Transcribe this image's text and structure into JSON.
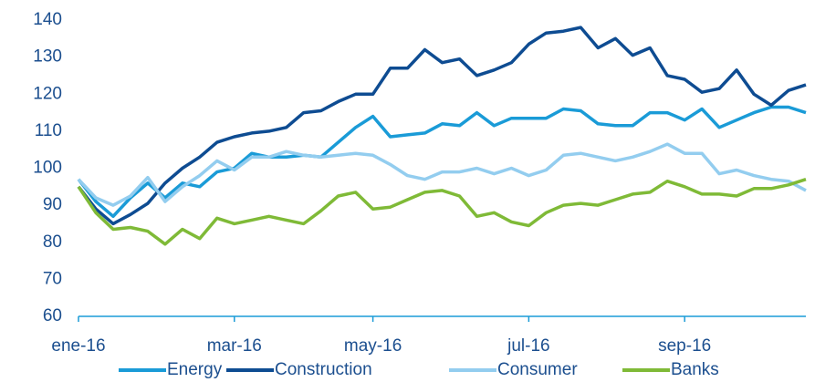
{
  "chart_data": {
    "type": "line",
    "categories": [
      "ene-16",
      null,
      null,
      null,
      null,
      null,
      null,
      null,
      null,
      "mar-16",
      null,
      null,
      null,
      null,
      null,
      null,
      null,
      "may-16",
      null,
      null,
      null,
      null,
      null,
      null,
      null,
      null,
      "jul-16",
      null,
      null,
      null,
      null,
      null,
      null,
      null,
      null,
      "sep-16",
      null,
      null,
      null,
      null,
      null,
      null,
      null
    ],
    "series": [
      {
        "name": "Energy",
        "color": "#1a9bd7",
        "values": [
          97,
          91,
          87,
          92,
          96,
          92,
          96,
          95,
          99,
          100,
          104,
          103,
          103,
          103.5,
          103,
          107,
          111,
          114,
          108.5,
          109,
          109.5,
          112,
          111.5,
          115,
          111.5,
          113.5,
          113.5,
          113.5,
          116,
          115.5,
          112,
          111.5,
          111.5,
          115,
          115,
          113,
          116,
          111,
          113,
          115,
          116.5,
          116.5,
          115
        ]
      },
      {
        "name": "Construction",
        "color": "#0e4c92",
        "values": [
          95,
          89,
          85,
          87.5,
          90.5,
          96,
          100,
          103,
          107,
          108.5,
          109.5,
          110,
          111,
          115,
          115.5,
          118,
          120,
          120,
          127,
          127,
          132,
          128.5,
          129.5,
          125,
          126.5,
          128.5,
          133.5,
          136.5,
          137,
          138,
          132.5,
          135,
          130.5,
          132.5,
          125,
          124,
          120.5,
          121.5,
          126.5,
          120,
          117,
          121,
          122.5
        ]
      },
      {
        "name": "Consumer",
        "color": "#93cdef",
        "values": [
          97,
          92,
          90,
          92.5,
          97.5,
          91,
          95,
          98,
          102,
          99.5,
          103,
          103,
          104.5,
          103.5,
          103,
          103.5,
          104,
          103.5,
          101,
          98,
          97,
          99,
          99,
          100,
          98.5,
          100,
          98,
          99.5,
          103.5,
          104,
          103,
          102,
          103,
          104.5,
          106.5,
          104,
          104,
          98.5,
          99.5,
          98,
          97,
          96.5,
          94
        ]
      },
      {
        "name": "Banks",
        "color": "#7fba37",
        "values": [
          95,
          88,
          83.5,
          84,
          83,
          79.5,
          83.5,
          81,
          86.5,
          85,
          86,
          87,
          86,
          85,
          88.5,
          92.5,
          93.5,
          89,
          89.5,
          91.5,
          93.5,
          94,
          92.5,
          87,
          88,
          85.5,
          84.5,
          88,
          90,
          90.5,
          90,
          91.5,
          93,
          93.5,
          96.5,
          95,
          93,
          93,
          92.5,
          94.5,
          94.5,
          95.5,
          97
        ]
      }
    ],
    "ylim": [
      60,
      140
    ],
    "yticks": [
      60,
      70,
      80,
      90,
      100,
      110,
      120,
      130,
      140
    ],
    "grid": false,
    "legend": "bottom"
  }
}
